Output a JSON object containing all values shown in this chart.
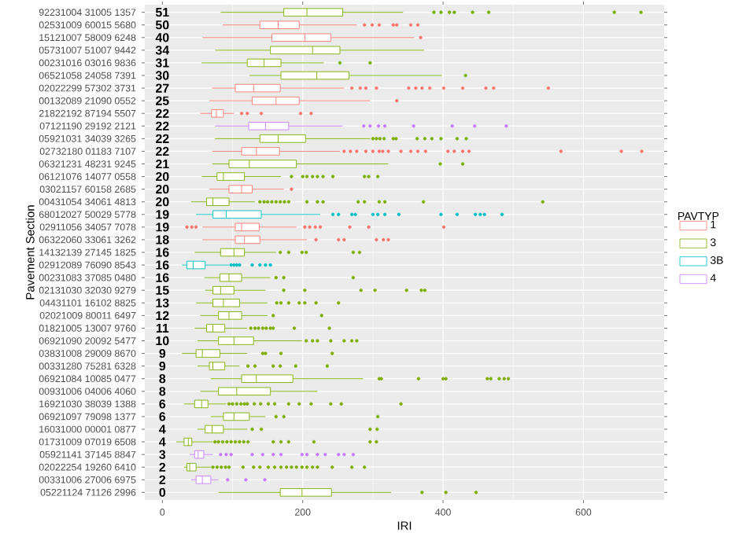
{
  "chart_data": {
    "type": "box",
    "orientation": "horizontal",
    "xlabel": "IRI",
    "ylabel": "Pavement Section",
    "legend_title": "PAVTYP",
    "legend": "right",
    "grid": true,
    "xlim": [
      -25,
      715
    ],
    "xticks": [
      0,
      200,
      400,
      600
    ],
    "categories": [
      "92231004 31005 1357",
      "02531009 60015 5680",
      "15121007 58009 6248",
      "05731007 51007 9442",
      "00231016 03016 9836",
      "06521058 24058 7391",
      "02022299 57302 3731",
      "00132089 21090 0552",
      "21822192 87194 5507",
      "07121190 29192 2121",
      "05921031 34039 3265",
      "02732180 01183 7107",
      "06321231 48231 9245",
      "06121076 14077 0558",
      "03021157 60158 2685",
      "00431054 34061 4813",
      "68012027 50029 5778",
      "02911056 34057 7078",
      "06322060 33061 3262",
      "14132139 27145 1825",
      "02912089 76090 8543",
      "00231083 37085 0480",
      "02131030 32030 9279",
      "04431101 16102 8825",
      "02021009 80011 6497",
      "01821005 13007 9760",
      "06921090 20092 5477",
      "03831008 29009 8670",
      "00331280 75281 6328",
      "06921084 10085 0477",
      "00931006 04006 4060",
      "16921030 38039 1388",
      "06921097 79098 1377",
      "16031000 00001 0877",
      "01731009 07019 6508",
      "05921141 37145 8847",
      "02022254 19260 6410",
      "00331006 27006 6975",
      "05221124 71126 2996"
    ],
    "series": [
      {
        "name": "1",
        "color": "#f8766d",
        "boxes": [
          null,
          {
            "low": 86,
            "q1": 139,
            "median": 165,
            "q3": 195,
            "high": 277,
            "outliers": [
              288,
              299,
              309,
              329,
              334,
              354,
              364
            ]
          },
          {
            "low": 57,
            "q1": 156,
            "median": 203,
            "q3": 240,
            "high": 359,
            "outliers": [
              368
            ]
          },
          null,
          null,
          null,
          {
            "low": 71,
            "q1": 104,
            "median": 130,
            "q3": 168,
            "high": 259,
            "outliers": [
              270,
              282,
              290,
              305,
              351,
              361,
              370,
              381,
              401,
              428,
              461,
              472,
              550
            ]
          },
          {
            "low": 67,
            "q1": 128,
            "median": 162,
            "q3": 195,
            "high": 296,
            "outliers": [
              334
            ]
          },
          {
            "low": 54,
            "q1": 70,
            "median": 77,
            "q3": 87,
            "high": 102,
            "outliers": [
              113,
              121,
              141,
              197,
              212
            ]
          },
          null,
          null,
          {
            "low": 71,
            "q1": 113,
            "median": 134,
            "q3": 167,
            "high": 253,
            "outliers": [
              259,
              268,
              277,
              290,
              300,
              309,
              314,
              322,
              340,
              354,
              364,
              375,
              407,
              416,
              428,
              437,
              568,
              654,
              683
            ]
          },
          null,
          null,
          {
            "low": 67,
            "q1": 95,
            "median": 113,
            "q3": 128,
            "high": 173,
            "outliers": [
              184
            ]
          },
          null,
          null,
          {
            "low": 57,
            "q1": 104,
            "median": 113,
            "q3": 138,
            "high": 191,
            "outliers": [
              35,
              42,
              48,
              203,
              210,
              218,
              225,
              267,
              294,
              401
            ]
          },
          {
            "low": 57,
            "q1": 104,
            "median": 117,
            "q3": 139,
            "high": 206,
            "outliers": [
              219,
              251,
              259,
              305,
              315,
              322
            ]
          },
          null,
          null,
          null,
          null,
          null,
          null,
          null,
          null,
          null,
          null,
          null,
          null,
          null,
          null,
          null,
          null,
          null,
          null,
          null,
          null
        ]
      },
      {
        "name": "3",
        "color": "#7cae00",
        "boxes": [
          {
            "low": 83,
            "q1": 173,
            "median": 206,
            "q3": 257,
            "high": 343,
            "outliers": [
              387,
              397,
              409,
              416,
              442,
              465,
              644,
              682
            ]
          },
          null,
          null,
          {
            "low": 75,
            "q1": 154,
            "median": 214,
            "q3": 253,
            "high": 373
          },
          {
            "low": 56,
            "q1": 121,
            "median": 145,
            "q3": 169,
            "high": 230,
            "outliers": [
              253,
              296
            ]
          },
          {
            "low": 124,
            "q1": 169,
            "median": 220,
            "q3": 266,
            "high": 398,
            "outliers": [
              432
            ]
          },
          null,
          null,
          null,
          null,
          {
            "low": 75,
            "q1": 139,
            "median": 165,
            "q3": 204,
            "high": 296,
            "outliers": [
              300,
              305,
              310,
              316,
              329,
              333,
              363,
              374,
              384,
              397,
              420,
              433
            ]
          },
          null,
          {
            "low": 71,
            "q1": 95,
            "median": 124,
            "q3": 191,
            "high": 322,
            "outliers": [
              396,
              428
            ]
          },
          {
            "low": 56,
            "q1": 78,
            "median": 87,
            "q3": 117,
            "high": 169,
            "outliers": [
              184,
              200,
              206,
              214,
              221,
              229,
              243,
              288,
              294,
              307
            ]
          },
          null,
          {
            "low": 41,
            "q1": 63,
            "median": 72,
            "q3": 95,
            "high": 132,
            "outliers": [
              139,
              145,
              150,
              156,
              162,
              168,
              174,
              180,
              206,
              221,
              229,
              279,
              288,
              309,
              317,
              372,
              542
            ]
          },
          null,
          null,
          null,
          {
            "low": 46,
            "q1": 83,
            "median": 102,
            "q3": 117,
            "high": 162,
            "outliers": [
              168,
              180,
              199,
              205,
              272,
              281
            ]
          },
          null,
          {
            "low": 60,
            "q1": 82,
            "median": 95,
            "q3": 113,
            "high": 154,
            "outliers": [
              162,
              173,
              272
            ]
          },
          {
            "low": 61,
            "q1": 72,
            "median": 83,
            "q3": 102,
            "high": 147,
            "outliers": [
              173,
              203,
              283,
              303,
              348,
              369,
              374
            ]
          },
          {
            "low": 48,
            "q1": 72,
            "median": 87,
            "q3": 110,
            "high": 150,
            "outliers": [
              163,
              169,
              180,
              195,
              203,
              219,
              251
            ]
          },
          {
            "low": 54,
            "q1": 80,
            "median": 95,
            "q3": 113,
            "high": 150,
            "outliers": [
              158,
              227
            ]
          },
          {
            "low": 46,
            "q1": 63,
            "median": 72,
            "q3": 89,
            "high": 121,
            "outliers": [
              126,
              132,
              137,
              143,
              148,
              154,
              158,
              188,
              238
            ]
          },
          {
            "low": 50,
            "q1": 80,
            "median": 102,
            "q3": 130,
            "high": 199,
            "outliers": [
              205,
              214,
              221,
              240,
              259,
              270,
              277
            ]
          },
          {
            "low": 28,
            "q1": 48,
            "median": 57,
            "q3": 82,
            "high": 121,
            "outliers": [
              143,
              147,
              169,
              242
            ]
          },
          {
            "low": 50,
            "q1": 67,
            "median": 72,
            "q3": 89,
            "high": 110,
            "outliers": [
              122,
              132,
              158,
              168,
              190,
              235
            ]
          },
          {
            "low": 69,
            "q1": 113,
            "median": 134,
            "q3": 186,
            "high": 286,
            "outliers": [
              309,
              312,
              365,
              400,
              404,
              463,
              468,
              480,
              487,
              493
            ]
          },
          {
            "low": 54,
            "q1": 80,
            "median": 106,
            "q3": 154,
            "high": 221
          },
          {
            "low": 31,
            "q1": 46,
            "median": 56,
            "q3": 65,
            "high": 91,
            "outliers": [
              95,
              100,
              106,
              112,
              117,
              121,
              131,
              140,
              151,
              160,
              180,
              195,
              212,
              240,
              255,
              340
            ]
          },
          {
            "low": 69,
            "q1": 87,
            "median": 102,
            "q3": 124,
            "high": 147,
            "outliers": [
              162,
              173,
              307
            ]
          },
          {
            "low": 50,
            "q1": 61,
            "median": 71,
            "q3": 87,
            "high": 121,
            "outliers": [
              128,
              141,
              296,
              306
            ]
          },
          {
            "low": 20,
            "q1": 31,
            "median": 37,
            "q3": 42,
            "high": 72,
            "outliers": [
              75,
              80,
              86,
              92,
              98,
              104,
              110,
              116,
              122,
              158,
              169,
              180,
              216,
              296,
              305
            ]
          },
          null,
          {
            "low": 31,
            "q1": 35,
            "median": 39,
            "q3": 48,
            "high": 69,
            "outliers": [
              72,
              78,
              84,
              90,
              95,
              115,
              130,
              139,
              151,
              160,
              169,
              177,
              184,
              191,
              199,
              206,
              214,
              221,
              242,
              270,
              288
            ]
          },
          null,
          {
            "low": 80,
            "q1": 168,
            "median": 199,
            "q3": 241,
            "high": 326,
            "outliers": [
              370,
              404,
              447
            ]
          }
        ]
      },
      {
        "name": "3B",
        "color": "#00bfc4",
        "boxes": [
          null,
          null,
          null,
          null,
          null,
          null,
          null,
          null,
          null,
          null,
          null,
          null,
          null,
          null,
          null,
          null,
          {
            "low": 48,
            "q1": 72,
            "median": 91,
            "q3": 141,
            "high": 225,
            "outliers": [
              243,
              251,
              270,
              275,
              300,
              307,
              317,
              337,
              397,
              420,
              446,
              453,
              459,
              484
            ]
          },
          null,
          null,
          null,
          {
            "low": 28,
            "q1": 35,
            "median": 44,
            "q3": 61,
            "high": 95,
            "outliers": [
              98,
              102,
              106,
              110,
              128,
              139,
              147,
              154
            ]
          },
          null,
          null,
          null,
          null,
          null,
          null,
          null,
          null,
          null,
          null,
          null,
          null,
          null,
          null,
          null,
          null,
          null,
          null
        ]
      },
      {
        "name": "4",
        "color": "#c77cff",
        "boxes": [
          null,
          null,
          null,
          null,
          null,
          null,
          null,
          null,
          null,
          {
            "low": 75,
            "q1": 123,
            "median": 147,
            "q3": 180,
            "high": 257,
            "outliers": [
              287,
              296,
              308,
              317,
              358,
              413,
              445,
              490
            ]
          },
          null,
          null,
          null,
          null,
          null,
          null,
          null,
          null,
          null,
          null,
          null,
          null,
          null,
          null,
          null,
          null,
          null,
          null,
          null,
          null,
          null,
          null,
          null,
          null,
          null,
          {
            "low": 39,
            "q1": 46,
            "median": 51,
            "q3": 59,
            "high": 72,
            "outliers": [
              83,
              91,
              98,
              128,
              143,
              158,
              169,
              199,
              206,
              221,
              232,
              251,
              259,
              272
            ]
          },
          null,
          {
            "low": 41,
            "q1": 48,
            "median": 57,
            "q3": 69,
            "high": 80,
            "outliers": [
              93,
              119,
              146
            ]
          },
          null
        ]
      }
    ],
    "annotations": [
      "51",
      "50",
      "40",
      "34",
      "31",
      "30",
      "27",
      "25",
      "22",
      "22",
      "22",
      "22",
      "21",
      "20",
      "20",
      "20",
      "19",
      "19",
      "18",
      "16",
      "16",
      "16",
      "15",
      "13",
      "12",
      "11",
      "10",
      "9",
      "9",
      "8",
      "8",
      "6",
      "6",
      "4",
      "4",
      "3",
      "2",
      "2",
      "0"
    ]
  }
}
